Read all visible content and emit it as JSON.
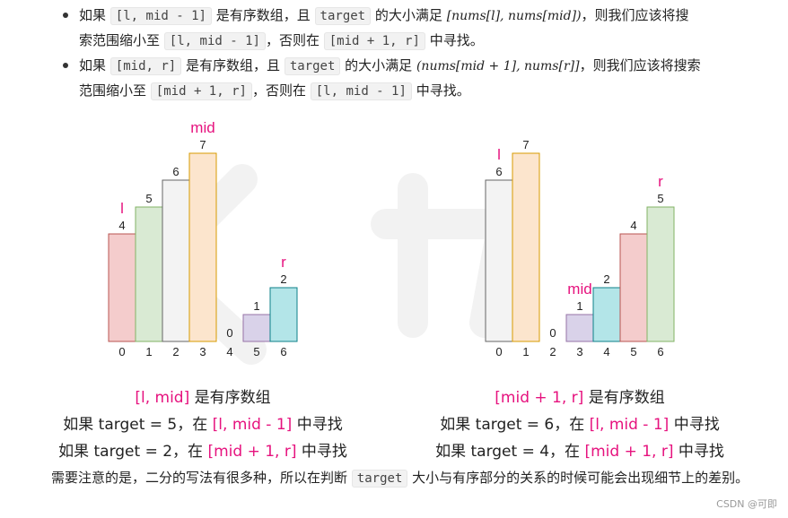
{
  "bullets": [
    {
      "l1": {
        "a": "如果",
        "code1": "[l, mid - 1]",
        "b": "是有序数组，且",
        "code2": "target",
        "c": "的大小满足",
        "math": "[nums[l], nums[mid])",
        "d": "，则我们应该将搜"
      },
      "l2": {
        "a": "索范围缩小至",
        "code1": "[l, mid - 1]",
        "b": "，否则在",
        "code2": "[mid + 1, r]",
        "c": "中寻找。"
      }
    },
    {
      "l1": {
        "a": "如果",
        "code1": "[mid, r]",
        "b": "是有序数组，且",
        "code2": "target",
        "c": "的大小满足",
        "math": "(nums[mid + 1], nums[r]]",
        "d": "，则我们应该将搜索"
      },
      "l2": {
        "a": "范围缩小至",
        "code1": "[mid + 1, r]",
        "b": "，否则在",
        "code2": "[l, mid - 1]",
        "c": "中寻找。"
      }
    }
  ],
  "charts": [
    {
      "indices": [
        "0",
        "1",
        "2",
        "3",
        "4",
        "5",
        "6"
      ],
      "values": [
        4,
        5,
        6,
        7,
        0,
        1,
        2
      ],
      "colors": [
        "#f4cccc",
        "#d9ead3",
        "#f3f3f3",
        "#fce5cd",
        "#ffffff",
        "#d9d2e9",
        "#b3e5e8"
      ],
      "strokes": [
        "#b85450",
        "#82b366",
        "#666666",
        "#d79b00",
        "#666666",
        "#9673a6",
        "#0e8088"
      ],
      "markers": [
        {
          "index": 0,
          "text": "l"
        },
        {
          "index": 3,
          "text": "mid"
        },
        {
          "index": 6,
          "text": "r"
        }
      ],
      "caption1": {
        "pre": "",
        "pink": "[l, mid]",
        "post": " 是有序数组"
      },
      "caption2": {
        "pre": "如果 target = 5，在 ",
        "pink": "[l, mid - 1]",
        "post": " 中寻找"
      },
      "caption3": {
        "pre": "如果 target = 2，在 ",
        "pink": "[mid + 1, r]",
        "post": " 中寻找"
      }
    },
    {
      "indices": [
        "0",
        "1",
        "2",
        "3",
        "4",
        "5",
        "6"
      ],
      "values": [
        6,
        7,
        0,
        1,
        2,
        4,
        5
      ],
      "colors": [
        "#f3f3f3",
        "#fce5cd",
        "#ffffff",
        "#d9d2e9",
        "#b3e5e8",
        "#f4cccc",
        "#d9ead3"
      ],
      "strokes": [
        "#666666",
        "#d79b00",
        "#666666",
        "#9673a6",
        "#0e8088",
        "#b85450",
        "#82b366"
      ],
      "markers": [
        {
          "index": 0,
          "text": "l"
        },
        {
          "index": 3,
          "text": "mid"
        },
        {
          "index": 6,
          "text": "r"
        }
      ],
      "caption1": {
        "pre": "",
        "pink": "[mid + 1, r]",
        "post": " 是有序数组"
      },
      "caption2": {
        "pre": "如果 target = 6，在 ",
        "pink": "[l, mid - 1]",
        "post": " 中寻找"
      },
      "caption3": {
        "pre": "如果 target = 4，在 ",
        "pink": "[mid + 1, r]",
        "post": " 中寻找"
      }
    }
  ],
  "note": {
    "a": "需要注意的是，二分的写法有很多种，所以在判断",
    "code": "target",
    "b": "大小与有序部分的关系的时候可能会出现细节上的差别。"
  },
  "watermark": "CSDN @可即",
  "colors": {
    "pink": "#e6127e"
  }
}
